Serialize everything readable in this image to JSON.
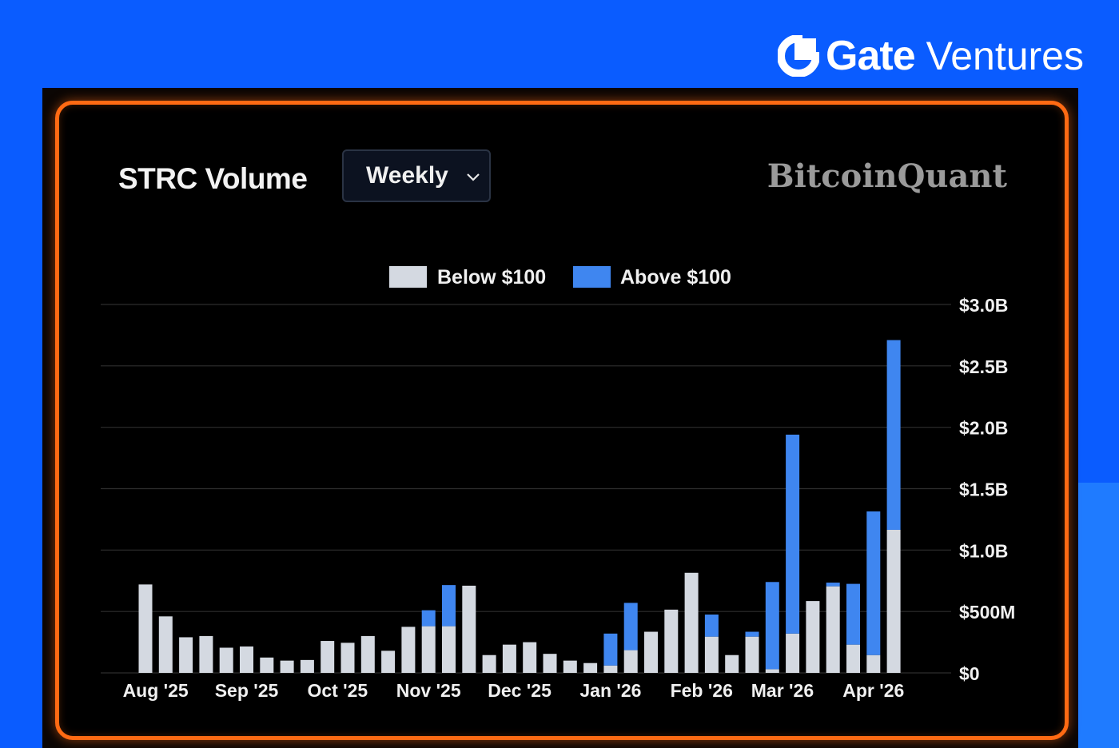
{
  "brand": {
    "name_bold": "Gate",
    "name_light": "Ventures"
  },
  "card": {
    "title": "STRC Volume",
    "period_select": {
      "selected": "Weekly"
    },
    "watermark": "BitcoinQuant"
  },
  "colors": {
    "below": "#d4d9e1",
    "above": "#3f86f0",
    "grid": "#2e2e2e",
    "frame": "#ff6a13"
  },
  "chart_data": {
    "type": "bar",
    "stacked": true,
    "grid": true,
    "legend_position": "top",
    "y_axis_side": "right",
    "ylim": [
      0,
      3000
    ],
    "y_unit": "M USD",
    "y_ticks": [
      {
        "value": 0,
        "label": "$0"
      },
      {
        "value": 500,
        "label": "$500M"
      },
      {
        "value": 1000,
        "label": "$1.0B"
      },
      {
        "value": 1500,
        "label": "$1.5B"
      },
      {
        "value": 2000,
        "label": "$2.0B"
      },
      {
        "value": 2500,
        "label": "$2.5B"
      },
      {
        "value": 3000,
        "label": "$3.0B"
      }
    ],
    "x_month_labels": [
      {
        "label": "Aug '25",
        "week_index": 0.5
      },
      {
        "label": "Sep '25",
        "week_index": 5
      },
      {
        "label": "Oct '25",
        "week_index": 9.5
      },
      {
        "label": "Nov '25",
        "week_index": 14
      },
      {
        "label": "Dec '25",
        "week_index": 18.5
      },
      {
        "label": "Jan '26",
        "week_index": 23
      },
      {
        "label": "Feb '26",
        "week_index": 27.5
      },
      {
        "label": "Mar '26",
        "week_index": 31.5
      },
      {
        "label": "Apr '26",
        "week_index": 36
      }
    ],
    "series": [
      {
        "name": "Below $100",
        "values": [
          720,
          460,
          290,
          300,
          205,
          215,
          125,
          100,
          105,
          260,
          245,
          300,
          180,
          375,
          380,
          380,
          710,
          145,
          230,
          250,
          155,
          100,
          80,
          60,
          185,
          335,
          515,
          815,
          295,
          145,
          295,
          30,
          320,
          585,
          705,
          230,
          145,
          1165
        ]
      },
      {
        "name": "Above $100",
        "values": [
          0,
          0,
          0,
          0,
          0,
          0,
          0,
          0,
          0,
          0,
          0,
          0,
          0,
          0,
          130,
          335,
          0,
          0,
          0,
          0,
          0,
          0,
          0,
          260,
          385,
          0,
          0,
          0,
          180,
          0,
          40,
          710,
          1620,
          0,
          30,
          495,
          1170,
          1545
        ]
      }
    ]
  }
}
